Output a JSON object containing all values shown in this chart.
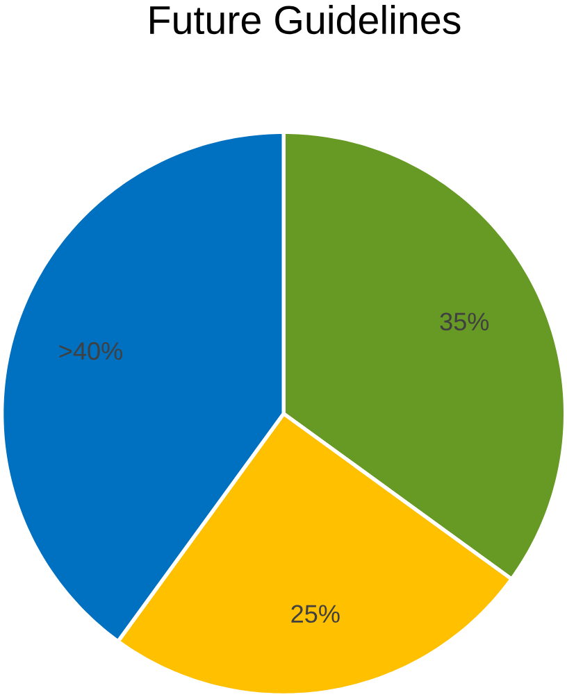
{
  "chart_data": {
    "type": "pie",
    "title": "Future Guidelines",
    "categories": [
      null,
      null,
      null
    ],
    "values": [
      35,
      25,
      40
    ],
    "colors": [
      "#669a24",
      "#ffc000",
      "#0070c0"
    ],
    "value_labels": [
      "35%",
      "25%",
      ">40%"
    ]
  }
}
